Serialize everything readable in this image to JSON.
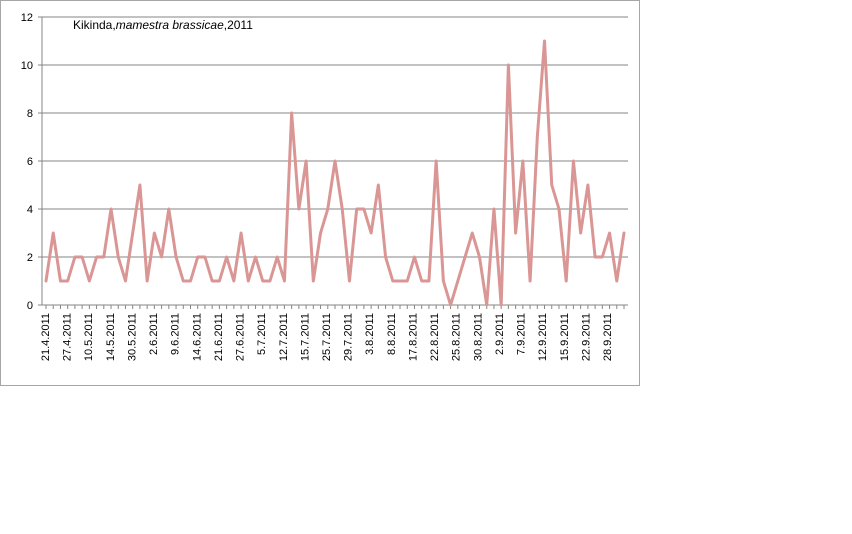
{
  "chart_data": {
    "type": "line",
    "title_prefix": "Kikinda,",
    "title_species": "mamestra brassicae",
    "title_suffix": ",2011",
    "ylim": [
      0,
      12
    ],
    "yticks": [
      0,
      2,
      4,
      6,
      8,
      10,
      12
    ],
    "grid": true,
    "line_color": "#d99694",
    "xtick_labels": [
      "21.4.2011",
      "27.4.2011",
      "10.5.2011",
      "14.5.2011",
      "30.5.2011",
      "2.6.2011",
      "9.6.2011",
      "14.6.2011",
      "21.6.2011",
      "27.6.2011",
      "5.7.2011",
      "12.7.2011",
      "15.7.2011",
      "25.7.2011",
      "29.7.2011",
      "3.8.2011",
      "8.8.2011",
      "17.8.2011",
      "22.8.2011",
      "25.8.2011",
      "30.8.2011",
      "2.9.2011",
      "7.9.2011",
      "12.9.2011",
      "15.9.2011",
      "22.9.2011",
      "28.9.2011"
    ],
    "values": [
      1,
      3,
      1,
      1,
      2,
      2,
      1,
      2,
      2,
      4,
      2,
      1,
      3,
      5,
      1,
      3,
      2,
      4,
      2,
      1,
      1,
      2,
      2,
      1,
      1,
      2,
      1,
      3,
      1,
      2,
      1,
      1,
      2,
      1,
      8,
      4,
      6,
      1,
      3,
      4,
      6,
      4,
      1,
      4,
      4,
      3,
      5,
      2,
      1,
      1,
      1,
      2,
      1,
      1,
      6,
      1,
      0,
      1,
      2,
      3,
      2,
      0,
      4,
      0,
      10,
      3,
      6,
      1,
      7,
      11,
      5,
      4,
      1,
      6,
      3,
      5,
      2,
      2,
      3,
      1,
      3
    ]
  }
}
